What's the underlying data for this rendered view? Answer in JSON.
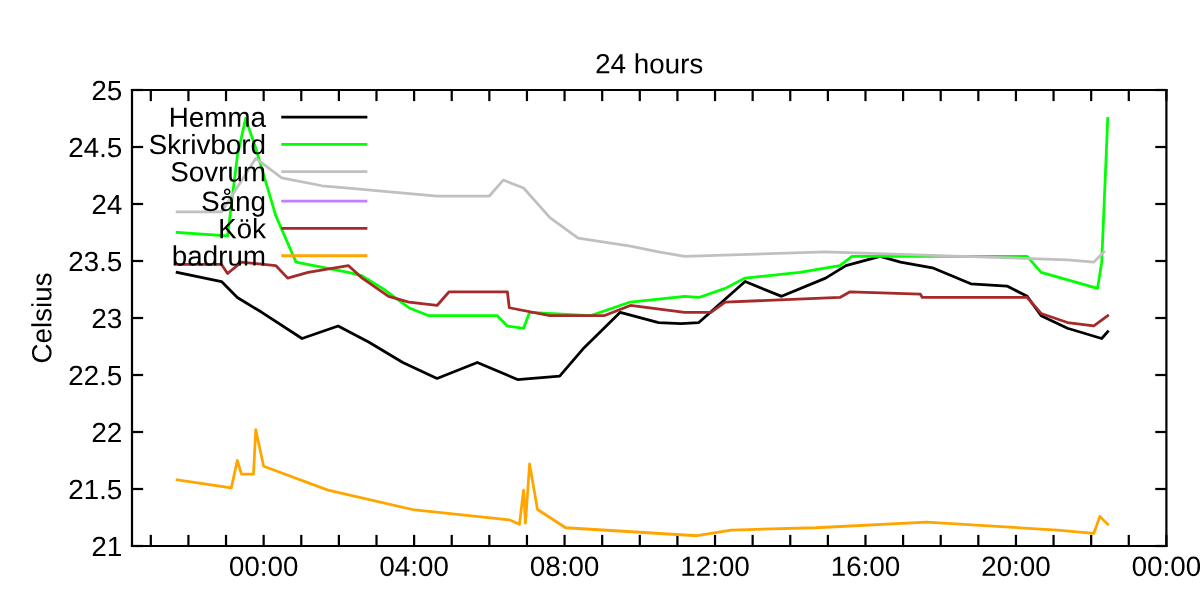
{
  "chart_data": {
    "type": "line",
    "title": "24 hours",
    "ylabel": "Celsius",
    "xlim": [
      -3.5,
      24
    ],
    "ylim": [
      21,
      25
    ],
    "xticks": [
      {
        "value": -3,
        "label": null
      },
      {
        "value": -2,
        "label": null
      },
      {
        "value": -1,
        "label": null
      },
      {
        "value": 0,
        "label": "00:00"
      },
      {
        "value": 1,
        "label": null
      },
      {
        "value": 2,
        "label": null
      },
      {
        "value": 3,
        "label": null
      },
      {
        "value": 4,
        "label": "04:00"
      },
      {
        "value": 5,
        "label": null
      },
      {
        "value": 6,
        "label": null
      },
      {
        "value": 7,
        "label": null
      },
      {
        "value": 8,
        "label": "08:00"
      },
      {
        "value": 9,
        "label": null
      },
      {
        "value": 10,
        "label": null
      },
      {
        "value": 11,
        "label": null
      },
      {
        "value": 12,
        "label": "12:00"
      },
      {
        "value": 13,
        "label": null
      },
      {
        "value": 14,
        "label": null
      },
      {
        "value": 15,
        "label": null
      },
      {
        "value": 16,
        "label": "16:00"
      },
      {
        "value": 17,
        "label": null
      },
      {
        "value": 18,
        "label": null
      },
      {
        "value": 19,
        "label": null
      },
      {
        "value": 20,
        "label": "20:00"
      },
      {
        "value": 21,
        "label": null
      },
      {
        "value": 22,
        "label": null
      },
      {
        "value": 23,
        "label": null
      },
      {
        "value": 24,
        "label": "00:00"
      }
    ],
    "yticks": [
      21,
      21.5,
      22,
      22.5,
      23,
      23.5,
      24,
      24.5,
      25
    ],
    "grid": false,
    "legend": "top left",
    "marker": "none",
    "line_style": "solid",
    "series": [
      {
        "name": "Hemma",
        "color": "#000000",
        "x": [
          -2.3,
          -1.12,
          -0.7,
          -0.05,
          1.02,
          1.98,
          2.79,
          3.7,
          4.61,
          5.68,
          6.75,
          7.87,
          8.52,
          9.48,
          10.5,
          11.09,
          11.57,
          12.8,
          13.77,
          14.94,
          15.48,
          16.39,
          16.93,
          17.78,
          18.8,
          19.76,
          20.3,
          20.67,
          21.37,
          22.28,
          22.44
        ],
        "values": [
          23.4,
          23.32,
          23.18,
          23.05,
          22.82,
          22.93,
          22.79,
          22.61,
          22.47,
          22.61,
          22.46,
          22.49,
          22.74,
          23.05,
          22.96,
          22.95,
          22.96,
          23.32,
          23.19,
          23.35,
          23.46,
          23.54,
          23.49,
          23.44,
          23.3,
          23.28,
          23.19,
          23.02,
          22.91,
          22.82,
          22.88
        ]
      },
      {
        "name": "Skrivbord",
        "color": "#00ff00",
        "x": [
          -2.3,
          -0.96,
          -0.7,
          -0.48,
          -0.21,
          0.32,
          0.86,
          2.25,
          2.62,
          3.16,
          3.86,
          4.39,
          6.21,
          6.48,
          6.91,
          7.07,
          8.68,
          9.75,
          11.19,
          11.57,
          12.27,
          12.8,
          14.25,
          15.32,
          15.64,
          20.3,
          20.67,
          21.21,
          22.17,
          22.28,
          22.44
        ],
        "values": [
          23.75,
          23.72,
          24.42,
          24.75,
          24.49,
          23.9,
          23.49,
          23.4,
          23.37,
          23.26,
          23.09,
          23.02,
          23.02,
          22.93,
          22.91,
          23.05,
          23.02,
          23.14,
          23.19,
          23.18,
          23.26,
          23.35,
          23.4,
          23.46,
          23.54,
          23.54,
          23.4,
          23.35,
          23.26,
          23.49,
          24.75
        ]
      },
      {
        "name": "Sovrum",
        "color": "#c0c0c0",
        "x": [
          -2.3,
          -1.12,
          -0.21,
          0.48,
          1.55,
          2.25,
          4.61,
          6.0,
          6.37,
          6.91,
          7.61,
          8.36,
          9.75,
          10.5,
          11.19,
          14.94,
          21.37,
          22.07,
          22.34
        ],
        "values": [
          23.93,
          23.93,
          24.4,
          24.23,
          24.16,
          24.14,
          24.07,
          24.07,
          24.21,
          24.14,
          23.88,
          23.7,
          23.63,
          23.58,
          23.54,
          23.58,
          23.51,
          23.49,
          23.58
        ]
      },
      {
        "name": "Sång",
        "color": "#c080ff"
      },
      {
        "name": "Kök",
        "color": "#a52a2a",
        "x": [
          -2.3,
          -1.12,
          -0.96,
          -0.59,
          0.32,
          0.64,
          1.18,
          2.25,
          2.62,
          3.32,
          3.86,
          4.61,
          4.93,
          6.48,
          6.53,
          7.61,
          9.05,
          9.75,
          11.19,
          11.89,
          12.27,
          15.32,
          15.59,
          17.46,
          17.51,
          20.3,
          20.67,
          21.37,
          22.07,
          22.44
        ],
        "values": [
          23.47,
          23.47,
          23.39,
          23.49,
          23.46,
          23.35,
          23.4,
          23.46,
          23.35,
          23.19,
          23.14,
          23.11,
          23.23,
          23.23,
          23.09,
          23.02,
          23.02,
          23.11,
          23.05,
          23.05,
          23.14,
          23.18,
          23.23,
          23.21,
          23.18,
          23.18,
          23.04,
          22.96,
          22.93,
          23.02
        ]
      },
      {
        "name": "badrum",
        "color": "#ffa500",
        "x": [
          -2.3,
          -0.86,
          -0.7,
          -0.59,
          -0.27,
          -0.21,
          0.0,
          1.71,
          3.96,
          6.53,
          6.8,
          6.91,
          6.96,
          7.07,
          7.28,
          8.03,
          11.52,
          12.43,
          14.68,
          17.62,
          21.1,
          22.07,
          22.23,
          22.44
        ],
        "values": [
          21.58,
          21.51,
          21.75,
          21.63,
          21.63,
          22.02,
          21.7,
          21.49,
          21.32,
          21.23,
          21.19,
          21.49,
          21.2,
          21.72,
          21.32,
          21.16,
          21.09,
          21.14,
          21.16,
          21.21,
          21.14,
          21.11,
          21.26,
          21.19
        ]
      }
    ]
  }
}
